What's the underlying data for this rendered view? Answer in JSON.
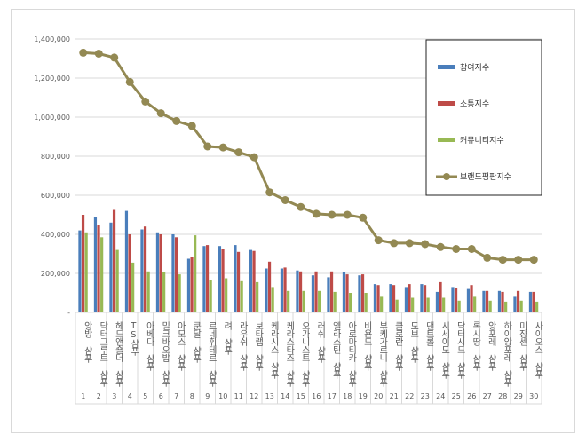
{
  "chart_data": {
    "type": "bar",
    "title": "",
    "xlabel": "",
    "ylabel": "",
    "ylim": [
      0,
      1400000
    ],
    "yticks": [
      "-",
      "200,000",
      "400,000",
      "600,000",
      "800,000",
      "1,000,000",
      "1,200,000",
      "1,400,000"
    ],
    "grid": true,
    "legend_position": "right",
    "categories": [
      "앙방 샴푸",
      "닥터그루트 샴푸",
      "헤드앤숄더 샴푸",
      "TS샴푸",
      "아베다 샴푸",
      "밀크바오밥 샴푸",
      "아모스 샴푸",
      "쿤달 샴푸",
      "르네휘테르 샴푸",
      "려 샴푸",
      "라우쉬 샴푸",
      "보타랩 샴푸",
      "케라시스 샴푸",
      "케라스타즈 샴푸",
      "오가니스트 샴푸",
      "러쉬 샴푸",
      "엘라스틴 샴푸",
      "아로마티카 샴푸",
      "비욘드 샴푸",
      "부케가르니 샴푸",
      "클로란 샴푸",
      "도브 샴푸",
      "댄트롤 샴푸",
      "시세이도 샴푸",
      "닥터시드 샴푸",
      "록시땅 샴푸",
      "앙포레 샴푸",
      "하이앙포레 샴푸",
      "미쟝센 샴푸",
      "사이오스 샴푸"
    ],
    "ranks": [
      "1",
      "2",
      "3",
      "4",
      "5",
      "6",
      "7",
      "8",
      "9",
      "10",
      "11",
      "12",
      "13",
      "14",
      "15",
      "16",
      "17",
      "18",
      "19",
      "20",
      "21",
      "22",
      "23",
      "24",
      "25",
      "26",
      "27",
      "28",
      "29",
      "30"
    ],
    "series": [
      {
        "name": "참여지수",
        "type": "bar",
        "color": "#4a7ebb",
        "values": [
          420000,
          490000,
          460000,
          520000,
          425000,
          410000,
          400000,
          275000,
          340000,
          340000,
          345000,
          320000,
          225000,
          225000,
          215000,
          190000,
          180000,
          205000,
          190000,
          145000,
          145000,
          130000,
          145000,
          105000,
          130000,
          120000,
          110000,
          110000,
          80000,
          105000
        ]
      },
      {
        "name": "소통지수",
        "type": "bar",
        "color": "#be4b48",
        "values": [
          500000,
          450000,
          525000,
          400000,
          440000,
          400000,
          385000,
          285000,
          345000,
          325000,
          310000,
          315000,
          260000,
          230000,
          210000,
          210000,
          210000,
          195000,
          195000,
          140000,
          140000,
          145000,
          140000,
          155000,
          125000,
          140000,
          110000,
          105000,
          110000,
          105000
        ]
      },
      {
        "name": "커뮤니티지수",
        "type": "bar",
        "color": "#98b954",
        "values": [
          410000,
          385000,
          320000,
          255000,
          210000,
          205000,
          195000,
          395000,
          165000,
          175000,
          160000,
          155000,
          130000,
          110000,
          110000,
          110000,
          105000,
          100000,
          100000,
          80000,
          65000,
          75000,
          75000,
          75000,
          60000,
          80000,
          60000,
          55000,
          60000,
          55000
        ]
      },
      {
        "name": "브랜드평판지수",
        "type": "line",
        "color": "#938953",
        "values": [
          1330000,
          1325000,
          1305000,
          1180000,
          1080000,
          1020000,
          980000,
          955000,
          850000,
          845000,
          820000,
          795000,
          615000,
          575000,
          540000,
          505000,
          500000,
          500000,
          485000,
          370000,
          355000,
          355000,
          350000,
          335000,
          325000,
          325000,
          280000,
          270000,
          270000,
          270000
        ]
      }
    ]
  }
}
